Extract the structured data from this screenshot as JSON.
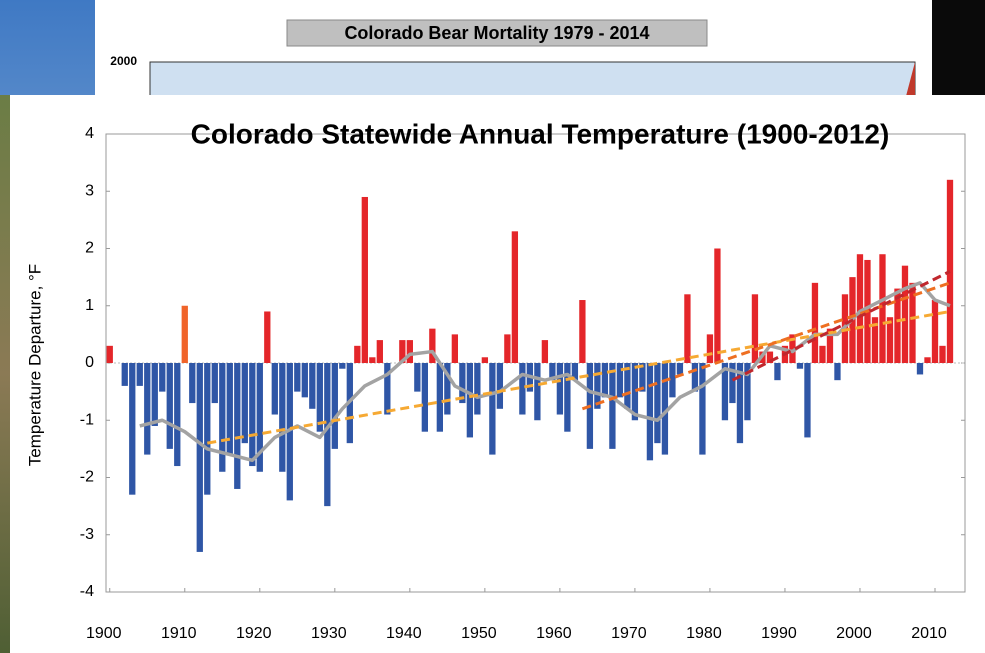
{
  "chart_data": [
    {
      "type": "bar",
      "title": "Colorado Statewide Annual Temperature (1900-2012)",
      "ylabel": "Temperature Departure, °F",
      "x": [
        1900,
        1901,
        1902,
        1903,
        1904,
        1905,
        1906,
        1907,
        1908,
        1909,
        1910,
        1911,
        1912,
        1913,
        1914,
        1915,
        1916,
        1917,
        1918,
        1919,
        1920,
        1921,
        1922,
        1923,
        1924,
        1925,
        1926,
        1927,
        1928,
        1929,
        1930,
        1931,
        1932,
        1933,
        1934,
        1935,
        1936,
        1937,
        1938,
        1939,
        1940,
        1941,
        1942,
        1943,
        1944,
        1945,
        1946,
        1947,
        1948,
        1949,
        1950,
        1951,
        1952,
        1953,
        1954,
        1955,
        1956,
        1957,
        1958,
        1959,
        1960,
        1961,
        1962,
        1963,
        1964,
        1965,
        1966,
        1967,
        1968,
        1969,
        1970,
        1971,
        1972,
        1973,
        1974,
        1975,
        1976,
        1977,
        1978,
        1979,
        1980,
        1981,
        1982,
        1983,
        1984,
        1985,
        1986,
        1987,
        1988,
        1989,
        1990,
        1991,
        1992,
        1993,
        1994,
        1995,
        1996,
        1997,
        1998,
        1999,
        2000,
        2001,
        2002,
        2003,
        2004,
        2005,
        2006,
        2007,
        2008,
        2009,
        2010,
        2011,
        2012
      ],
      "values": [
        0.3,
        0,
        -0.4,
        -2.3,
        -0.4,
        -1.6,
        -1.1,
        -0.5,
        -1.5,
        -1.8,
        1.0,
        -0.7,
        -3.3,
        -2.3,
        -0.7,
        -1.9,
        -1.6,
        -2.2,
        -1.4,
        -1.8,
        -1.9,
        0.9,
        -0.9,
        -1.9,
        -2.4,
        -0.5,
        -0.6,
        -0.8,
        -1.2,
        -2.5,
        -1.5,
        -0.1,
        -1.4,
        0.3,
        2.9,
        0.1,
        0.4,
        -0.9,
        0,
        0.4,
        0.4,
        -0.5,
        -1.2,
        0.6,
        -1.2,
        -0.9,
        0.5,
        -0.7,
        -1.3,
        -0.9,
        0.1,
        -1.6,
        -0.8,
        0.5,
        2.3,
        -0.9,
        -0.5,
        -1.0,
        0.4,
        -0.3,
        -0.9,
        -1.2,
        -0.3,
        1.1,
        -1.5,
        -0.8,
        -0.6,
        -1.5,
        -0.6,
        -0.8,
        -1.0,
        -0.5,
        -1.7,
        -1.4,
        -1.6,
        -0.6,
        -0.2,
        1.2,
        -0.5,
        -1.6,
        0.5,
        2.0,
        -1.0,
        -0.7,
        -1.4,
        -1.0,
        1.2,
        0.2,
        0.2,
        -0.3,
        0.3,
        0.5,
        -0.1,
        -1.3,
        1.4,
        0.3,
        0.6,
        -0.3,
        1.2,
        1.5,
        1.9,
        1.8,
        0.8,
        1.9,
        0.8,
        1.3,
        1.7,
        1.4,
        -0.2,
        0.1,
        1.1,
        0.3,
        3.2
      ],
      "color": "#e4262a",
      "negative_color": "#2f56a6",
      "highlight_colors": {
        "10": "#f0642a"
      },
      "lines": [
        {
          "type": "line",
          "color": "#a3a3a3",
          "x": [
            1904,
            1907,
            1910,
            1913,
            1916,
            1919,
            1922,
            1925,
            1928,
            1931,
            1934,
            1937,
            1940,
            1943,
            1946,
            1949,
            1952,
            1955,
            1958,
            1961,
            1964,
            1967,
            1970,
            1973,
            1976,
            1979,
            1982,
            1985,
            1988,
            1991,
            1994,
            1997,
            2000,
            2003,
            2006,
            2008,
            2010,
            2012
          ],
          "values": [
            -1.1,
            -1.0,
            -1.2,
            -1.5,
            -1.6,
            -1.7,
            -1.3,
            -1.1,
            -1.3,
            -0.8,
            -0.4,
            -0.2,
            0.15,
            0.2,
            -0.4,
            -0.6,
            -0.5,
            -0.2,
            -0.3,
            -0.2,
            -0.5,
            -0.6,
            -0.9,
            -1.0,
            -0.6,
            -0.4,
            -0.1,
            -0.2,
            0.3,
            0.2,
            0.5,
            0.5,
            0.9,
            1.1,
            1.3,
            1.4,
            1.1,
            1.0
          ]
        },
        {
          "type": "line",
          "color": "#f6a933",
          "dashed": true,
          "x": [
            1913,
            2012
          ],
          "values": [
            -1.4,
            0.9
          ]
        },
        {
          "type": "line",
          "color": "#ee6f22",
          "dashed": true,
          "x": [
            1963,
            2012
          ],
          "values": [
            -0.8,
            1.4
          ]
        },
        {
          "type": "line",
          "color": "#c0272d",
          "dashed": true,
          "x": [
            1983,
            2012
          ],
          "values": [
            -0.3,
            1.6
          ]
        }
      ],
      "xlim": [
        1899.5,
        2014
      ],
      "xticks": [
        1900,
        1910,
        1920,
        1930,
        1940,
        1950,
        1960,
        1970,
        1980,
        1990,
        2000,
        2010
      ],
      "ylim": [
        -4,
        4
      ],
      "yticks": [
        4,
        3,
        2,
        1,
        0,
        -1,
        -2,
        -3,
        -4
      ],
      "grid": false
    },
    {
      "type": "bar",
      "title": "Colorado Bear Mortality 1979 - 2014",
      "yticks": [
        2000
      ]
    }
  ]
}
